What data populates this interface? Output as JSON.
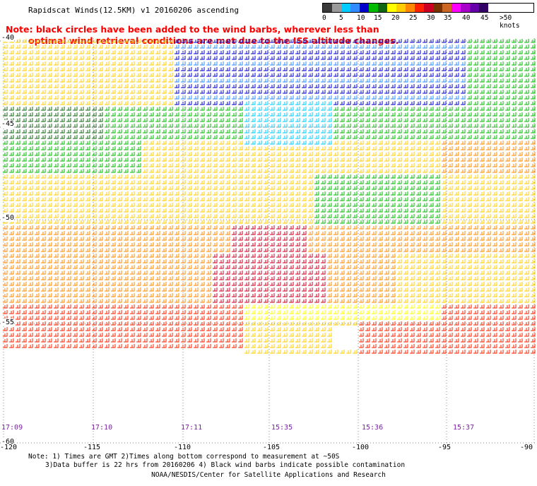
{
  "title": "Rapidscat Winds(12.5KM) v1 20160206 ascending",
  "note_red": {
    "line1": "Note: black circles have been added to the wind barbs, wherever less than",
    "line2": "optimal wind retrieval conditions are met due to the ISS altitude changes."
  },
  "legend": {
    "colors": [
      "#3a3a3a",
      "#9a9a9a",
      "#00ccff",
      "#2f8bff",
      "#0000cc",
      "#00bb00",
      "#116611",
      "#ffff00",
      "#ffcc00",
      "#ff8800",
      "#ff2200",
      "#cc0022",
      "#773300",
      "#cc6622",
      "#ff00ff",
      "#aa00cc",
      "#6600aa",
      "#330066"
    ],
    "labels": [
      "0",
      "5",
      "10",
      "15",
      "20",
      "25",
      "30",
      "35",
      "40",
      "45",
      ">50 knots"
    ]
  },
  "lat_labels": [
    "-40",
    "-45",
    "-50",
    "-55",
    "-60"
  ],
  "lon_labels": [
    "-120",
    "-115",
    "-110",
    "-105",
    "-100",
    "-95",
    "-90"
  ],
  "times": [
    "17:09",
    "17:10",
    "17:11",
    "15:35",
    "15:36",
    "15:37"
  ],
  "footnote": {
    "line1": "Note: 1) Times are GMT 2)Times along bottom correspond to measurement at ~50S",
    "line2": "3)Data buffer is 22 hrs from 20160206 4) Black wind barbs indicate possible contamination"
  },
  "credit": "NOAA/NESDIS/Center for Satellite Applications and Research"
}
